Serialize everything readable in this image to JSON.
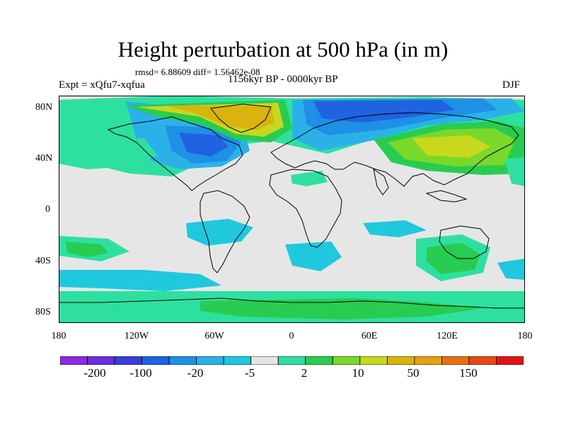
{
  "title": "Height perturbation at 500 hPa (in m)",
  "stats": "rmsd= 6.88609 diff= 1.56462e-08",
  "expt": "Expt = xQfu7-xqfua",
  "period": "1156kyr BP - 0000kyr BP",
  "season": "DJF",
  "y_axis_labels": [
    "80N",
    "40N",
    "0",
    "40S",
    "80S"
  ],
  "x_axis_labels": [
    "180",
    "120W",
    "60W",
    "0",
    "60E",
    "120E",
    "180"
  ],
  "colorbar": {
    "labels": [
      "-200",
      "-100",
      "-20",
      "-5",
      "2",
      "10",
      "50",
      "150"
    ],
    "colors": [
      "#8a2be2",
      "#6a2fe0",
      "#3a3ed6",
      "#1f63e0",
      "#1e90e6",
      "#2ab2e8",
      "#20c8de",
      "#e6e6e6",
      "#2ee0a0",
      "#28cc50",
      "#7ad82a",
      "#c8d81c",
      "#d8b40c",
      "#e6a010",
      "#e67010",
      "#e64a14",
      "#e01414"
    ]
  },
  "map_colors": {
    "neutral": "#e6e6e6",
    "cyan": "#20c8de",
    "sky": "#2ab2e8",
    "blue": "#1e90e6",
    "deepblue": "#1f63e0",
    "mint": "#2ee0a0",
    "green": "#28cc50",
    "lime": "#7ad82a",
    "yellowgreen": "#c8d81c",
    "gold": "#d8b40c",
    "coast": "#000000"
  }
}
